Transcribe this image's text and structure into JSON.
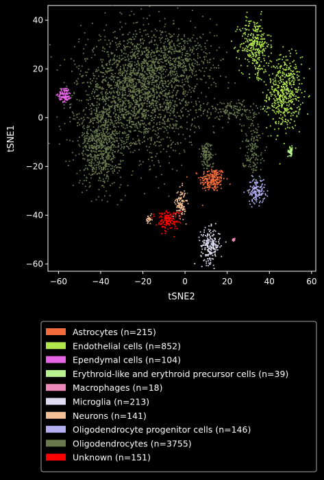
{
  "chart_data": {
    "type": "scatter",
    "title": "",
    "xlabel": "tSNE2",
    "ylabel": "tSNE1",
    "xlim": [
      -65,
      62
    ],
    "ylim": [
      -63,
      46
    ],
    "x_ticks": [
      -60,
      -40,
      -20,
      0,
      20,
      40,
      60
    ],
    "y_ticks": [
      -60,
      -40,
      -20,
      0,
      20,
      40
    ],
    "x_tick_labels": [
      "−60",
      "−40",
      "−20",
      "0",
      "20",
      "40",
      "60"
    ],
    "y_tick_labels": [
      "−60",
      "−40",
      "−20",
      "0",
      "20",
      "40"
    ],
    "grid": false,
    "legend_placement": "below",
    "background": "#000000",
    "series": [
      {
        "name": "Astrocytes (n=215)",
        "color": "#f26b3a",
        "n": 215,
        "clusters": [
          {
            "center": [
              13,
              -25.5
            ],
            "spread": [
              3,
              2.5
            ],
            "n": 215
          }
        ]
      },
      {
        "name": "Endothelial cells (n=852)",
        "color": "#b2e64d",
        "n": 852,
        "clusters": [
          {
            "center": [
              47,
              10
            ],
            "spread": [
              4,
              7.5
            ],
            "n": 520
          },
          {
            "center": [
              33,
              30
            ],
            "spread": [
              3.5,
              5.5
            ],
            "n": 300
          },
          {
            "center": [
              50,
              -13.5
            ],
            "spread": [
              0.6,
              0.8
            ],
            "n": 12
          },
          {
            "center": [
              35,
              18.5
            ],
            "spread": [
              1,
              2
            ],
            "n": 20
          }
        ]
      },
      {
        "name": "Ependymal cells (n=104)",
        "color": "#e565e6",
        "n": 104,
        "clusters": [
          {
            "center": [
              -57,
              9.5
            ],
            "spread": [
              1.5,
              1.5
            ],
            "n": 104
          }
        ]
      },
      {
        "name": "Erythroid-like and erythroid precursor cells (n=39)",
        "color": "#b8f08f",
        "n": 39,
        "clusters": [
          {
            "center": [
              50,
              -14
            ],
            "spread": [
              0.6,
              0.8
            ],
            "n": 39
          }
        ]
      },
      {
        "name": "Macrophages (n=18)",
        "color": "#ee88b9",
        "n": 18,
        "clusters": [
          {
            "center": [
              23,
              -50
            ],
            "spread": [
              0.3,
              0.3
            ],
            "n": 18
          }
        ]
      },
      {
        "name": "Microglia (n=213)",
        "color": "#dedcf0",
        "n": 213,
        "clusters": [
          {
            "center": [
              12,
              -52.5
            ],
            "spread": [
              2.3,
              3.5
            ],
            "n": 213
          }
        ]
      },
      {
        "name": "Neurons (n=141)",
        "color": "#f2be96",
        "n": 141,
        "clusters": [
          {
            "center": [
              -2,
              -35
            ],
            "spread": [
              1.2,
              3
            ],
            "n": 110
          },
          {
            "center": [
              -17,
              -42
            ],
            "spread": [
              0.7,
              1
            ],
            "n": 31
          }
        ]
      },
      {
        "name": "Oligodendrocyte progenitor cells (n=146)",
        "color": "#b3aef0",
        "n": 146,
        "clusters": [
          {
            "center": [
              34,
              -30
            ],
            "spread": [
              2,
              2.5
            ],
            "n": 146
          }
        ]
      },
      {
        "name": "Oligodendrocytes (n=3755)",
        "color": "#6a7a4e",
        "n": 3755,
        "clusters": [
          {
            "center": [
              -22,
              10
            ],
            "spread": [
              14,
              12
            ],
            "n": 2300
          },
          {
            "center": [
              -40,
              -12
            ],
            "spread": [
              5,
              8
            ],
            "n": 650
          },
          {
            "center": [
              -5,
              25
            ],
            "spread": [
              10,
              6
            ],
            "n": 400
          },
          {
            "center": [
              22,
              3
            ],
            "spread": [
              6,
              2
            ],
            "n": 150
          },
          {
            "center": [
              32,
              -12
            ],
            "spread": [
              2.5,
              6
            ],
            "n": 150
          },
          {
            "center": [
              10,
              -15
            ],
            "spread": [
              1.5,
              3
            ],
            "n": 105
          }
        ]
      },
      {
        "name": "Unknown (n=151)",
        "color": "#ff0000",
        "n": 151,
        "clusters": [
          {
            "center": [
              -8,
              -42
            ],
            "spread": [
              2.8,
              2
            ],
            "n": 151
          }
        ]
      }
    ],
    "legend": [
      {
        "label": "Astrocytes (n=215)",
        "color": "#f26b3a"
      },
      {
        "label": "Endothelial cells (n=852)",
        "color": "#b2e64d"
      },
      {
        "label": "Ependymal cells (n=104)",
        "color": "#e565e6"
      },
      {
        "label": "Erythroid-like and erythroid precursor cells (n=39)",
        "color": "#b8f08f"
      },
      {
        "label": "Macrophages (n=18)",
        "color": "#ee88b9"
      },
      {
        "label": "Microglia (n=213)",
        "color": "#dedcf0"
      },
      {
        "label": "Neurons (n=141)",
        "color": "#f2be96"
      },
      {
        "label": "Oligodendrocyte progenitor cells (n=146)",
        "color": "#b3aef0"
      },
      {
        "label": "Oligodendrocytes (n=3755)",
        "color": "#6a7a4e"
      },
      {
        "label": "Unknown (n=151)",
        "color": "#ff0000"
      }
    ]
  }
}
